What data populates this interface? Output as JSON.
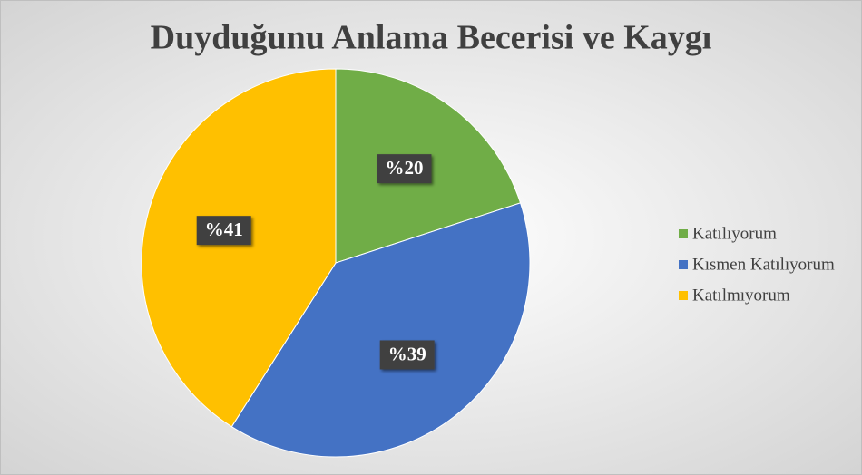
{
  "chart_data": {
    "type": "pie",
    "title": "Duyduğunu Anlama Becerisi ve Kaygı",
    "categories": [
      "Katılıyorum",
      "Kısmen Katılıyorum",
      "Katılmıyorum"
    ],
    "values": [
      20,
      39,
      41
    ],
    "value_labels": [
      "%20",
      "%39",
      "%41"
    ],
    "colors": [
      "#70ad47",
      "#4472c4",
      "#ffc000"
    ],
    "legend": "right"
  }
}
